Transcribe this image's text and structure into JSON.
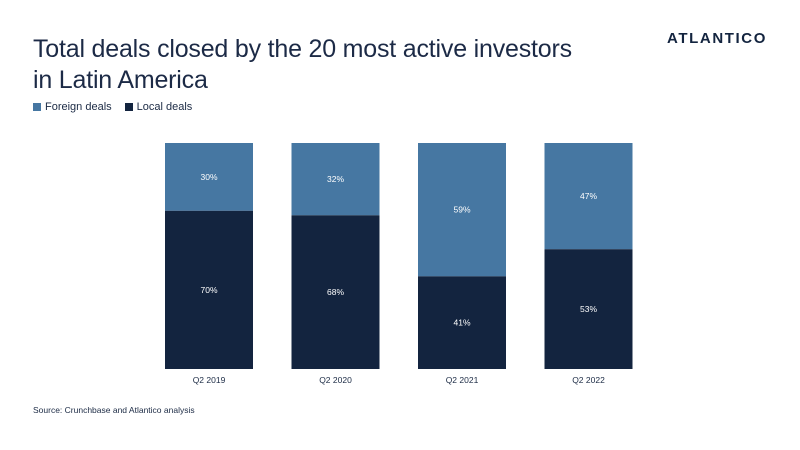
{
  "header": {
    "title_line1": "Total deals closed by the 20 most active investors",
    "title_line2": "in Latin America",
    "logo_text": "ATLANTICO"
  },
  "footer": {
    "source": "Source: Crunchbase and Atlantico analysis"
  },
  "colors": {
    "foreign": "#4677a2",
    "local": "#13243f",
    "label_text": "#ffffff",
    "axis_text": "#1b2a44"
  },
  "chart_data": {
    "type": "bar",
    "stacked": true,
    "normalized_percent": true,
    "categories": [
      "Q2 2019",
      "Q2 2020",
      "Q2 2021",
      "Q2 2022"
    ],
    "series": [
      {
        "name": "Local deals",
        "values": [
          70,
          68,
          41,
          53
        ],
        "labels": [
          "70%",
          "68%",
          "41%",
          "53%"
        ]
      },
      {
        "name": "Foreign deals",
        "values": [
          30,
          32,
          59,
          47
        ],
        "labels": [
          "30%",
          "32%",
          "59%",
          "47%"
        ]
      }
    ],
    "ylim": [
      0,
      100
    ],
    "legend_placement": "top-left",
    "grid": false
  }
}
